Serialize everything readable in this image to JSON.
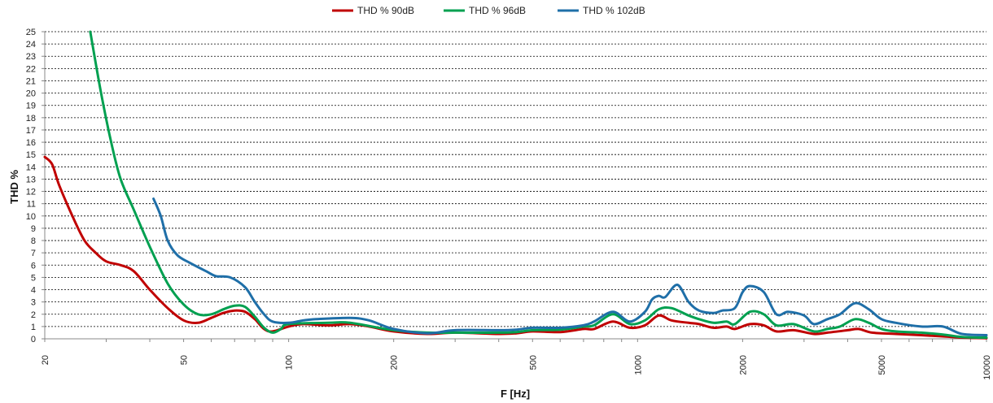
{
  "chart_data": {
    "type": "line",
    "title": "",
    "xlabel": "F [Hz]",
    "ylabel": "THD %",
    "x_scale": "log",
    "xlim": [
      20,
      10000
    ],
    "ylim": [
      0,
      25
    ],
    "x_ticks": [
      "20",
      "50",
      "100",
      "200",
      "500",
      "1000",
      "2000",
      "5000",
      "10000"
    ],
    "y_ticks": [
      "0",
      "1",
      "2",
      "3",
      "4",
      "5",
      "6",
      "7",
      "8",
      "9",
      "10",
      "11",
      "12",
      "13",
      "14",
      "15",
      "16",
      "17",
      "18",
      "19",
      "20",
      "21",
      "22",
      "23",
      "24",
      "25"
    ],
    "grid": "horizontal dashed",
    "legend_position": "top",
    "series": [
      {
        "name": "THD % 90dB",
        "color": "#C00000",
        "points": [
          [
            20,
            14.8
          ],
          [
            21,
            14.2
          ],
          [
            22,
            12.5
          ],
          [
            24,
            10
          ],
          [
            26,
            8
          ],
          [
            28,
            7
          ],
          [
            30,
            6.3
          ],
          [
            33,
            6
          ],
          [
            36,
            5.5
          ],
          [
            40,
            4
          ],
          [
            45,
            2.5
          ],
          [
            50,
            1.5
          ],
          [
            55,
            1.3
          ],
          [
            60,
            1.7
          ],
          [
            65,
            2.1
          ],
          [
            70,
            2.3
          ],
          [
            75,
            2.2
          ],
          [
            80,
            1.6
          ],
          [
            85,
            0.8
          ],
          [
            90,
            0.6
          ],
          [
            100,
            1.0
          ],
          [
            110,
            1.2
          ],
          [
            130,
            1.1
          ],
          [
            150,
            1.2
          ],
          [
            170,
            1.0
          ],
          [
            200,
            0.6
          ],
          [
            250,
            0.4
          ],
          [
            300,
            0.5
          ],
          [
            400,
            0.4
          ],
          [
            450,
            0.45
          ],
          [
            500,
            0.6
          ],
          [
            600,
            0.55
          ],
          [
            700,
            0.8
          ],
          [
            750,
            0.8
          ],
          [
            850,
            1.4
          ],
          [
            950,
            0.9
          ],
          [
            1050,
            1.1
          ],
          [
            1150,
            1.9
          ],
          [
            1250,
            1.5
          ],
          [
            1400,
            1.3
          ],
          [
            1500,
            1.2
          ],
          [
            1650,
            0.9
          ],
          [
            1800,
            1.0
          ],
          [
            1900,
            0.8
          ],
          [
            2100,
            1.2
          ],
          [
            2300,
            1.1
          ],
          [
            2500,
            0.6
          ],
          [
            2800,
            0.7
          ],
          [
            3200,
            0.4
          ],
          [
            3500,
            0.5
          ],
          [
            4000,
            0.7
          ],
          [
            4300,
            0.8
          ],
          [
            4700,
            0.5
          ],
          [
            5500,
            0.4
          ],
          [
            6500,
            0.3
          ],
          [
            7500,
            0.2
          ],
          [
            8500,
            0.1
          ],
          [
            10000,
            0.05
          ]
        ]
      },
      {
        "name": "THD % 96dB",
        "color": "#00A050",
        "points": [
          [
            27,
            25
          ],
          [
            29,
            20
          ],
          [
            31,
            16
          ],
          [
            33,
            13
          ],
          [
            36,
            10.5
          ],
          [
            40,
            7.5
          ],
          [
            45,
            4.5
          ],
          [
            50,
            2.8
          ],
          [
            55,
            2.0
          ],
          [
            60,
            2.0
          ],
          [
            65,
            2.4
          ],
          [
            70,
            2.7
          ],
          [
            75,
            2.6
          ],
          [
            80,
            1.8
          ],
          [
            85,
            0.9
          ],
          [
            90,
            0.5
          ],
          [
            95,
            0.8
          ],
          [
            100,
            1.2
          ],
          [
            130,
            1.3
          ],
          [
            150,
            1.3
          ],
          [
            200,
            0.7
          ],
          [
            250,
            0.5
          ],
          [
            300,
            0.5
          ],
          [
            400,
            0.5
          ],
          [
            450,
            0.55
          ],
          [
            500,
            0.7
          ],
          [
            600,
            0.75
          ],
          [
            700,
            1.0
          ],
          [
            750,
            1.1
          ],
          [
            850,
            2.0
          ],
          [
            950,
            1.2
          ],
          [
            1050,
            1.5
          ],
          [
            1150,
            2.4
          ],
          [
            1250,
            2.5
          ],
          [
            1400,
            1.9
          ],
          [
            1500,
            1.6
          ],
          [
            1650,
            1.3
          ],
          [
            1800,
            1.4
          ],
          [
            1900,
            1.2
          ],
          [
            2100,
            2.2
          ],
          [
            2300,
            2.0
          ],
          [
            2500,
            1.1
          ],
          [
            2800,
            1.2
          ],
          [
            3200,
            0.6
          ],
          [
            3500,
            0.8
          ],
          [
            3800,
            1.0
          ],
          [
            4200,
            1.6
          ],
          [
            4600,
            1.3
          ],
          [
            5000,
            0.8
          ],
          [
            5500,
            0.6
          ],
          [
            6500,
            0.5
          ],
          [
            7500,
            0.35
          ],
          [
            8500,
            0.15
          ],
          [
            10000,
            0.1
          ]
        ]
      },
      {
        "name": "THD % 102dB",
        "color": "#1F6FA8",
        "points": [
          [
            41,
            11.4
          ],
          [
            43,
            10
          ],
          [
            45,
            8
          ],
          [
            48,
            6.8
          ],
          [
            52,
            6.2
          ],
          [
            58,
            5.5
          ],
          [
            62,
            5.1
          ],
          [
            68,
            5.0
          ],
          [
            75,
            4.2
          ],
          [
            80,
            3.0
          ],
          [
            85,
            2.0
          ],
          [
            90,
            1.4
          ],
          [
            100,
            1.3
          ],
          [
            110,
            1.5
          ],
          [
            120,
            1.6
          ],
          [
            150,
            1.7
          ],
          [
            170,
            1.5
          ],
          [
            200,
            0.8
          ],
          [
            250,
            0.45
          ],
          [
            300,
            0.7
          ],
          [
            400,
            0.7
          ],
          [
            450,
            0.75
          ],
          [
            500,
            0.9
          ],
          [
            600,
            0.9
          ],
          [
            700,
            1.1
          ],
          [
            750,
            1.4
          ],
          [
            850,
            2.2
          ],
          [
            950,
            1.4
          ],
          [
            1050,
            2.2
          ],
          [
            1100,
            3.2
          ],
          [
            1150,
            3.5
          ],
          [
            1200,
            3.4
          ],
          [
            1300,
            4.4
          ],
          [
            1400,
            3.0
          ],
          [
            1500,
            2.3
          ],
          [
            1650,
            2.1
          ],
          [
            1750,
            2.3
          ],
          [
            1900,
            2.5
          ],
          [
            2000,
            3.8
          ],
          [
            2100,
            4.3
          ],
          [
            2300,
            3.8
          ],
          [
            2500,
            2.0
          ],
          [
            2700,
            2.2
          ],
          [
            3000,
            1.9
          ],
          [
            3200,
            1.2
          ],
          [
            3500,
            1.6
          ],
          [
            3800,
            2.0
          ],
          [
            4200,
            2.9
          ],
          [
            4600,
            2.4
          ],
          [
            5000,
            1.6
          ],
          [
            5500,
            1.3
          ],
          [
            6500,
            1.0
          ],
          [
            7500,
            1.0
          ],
          [
            8500,
            0.4
          ],
          [
            10000,
            0.3
          ]
        ]
      }
    ]
  }
}
